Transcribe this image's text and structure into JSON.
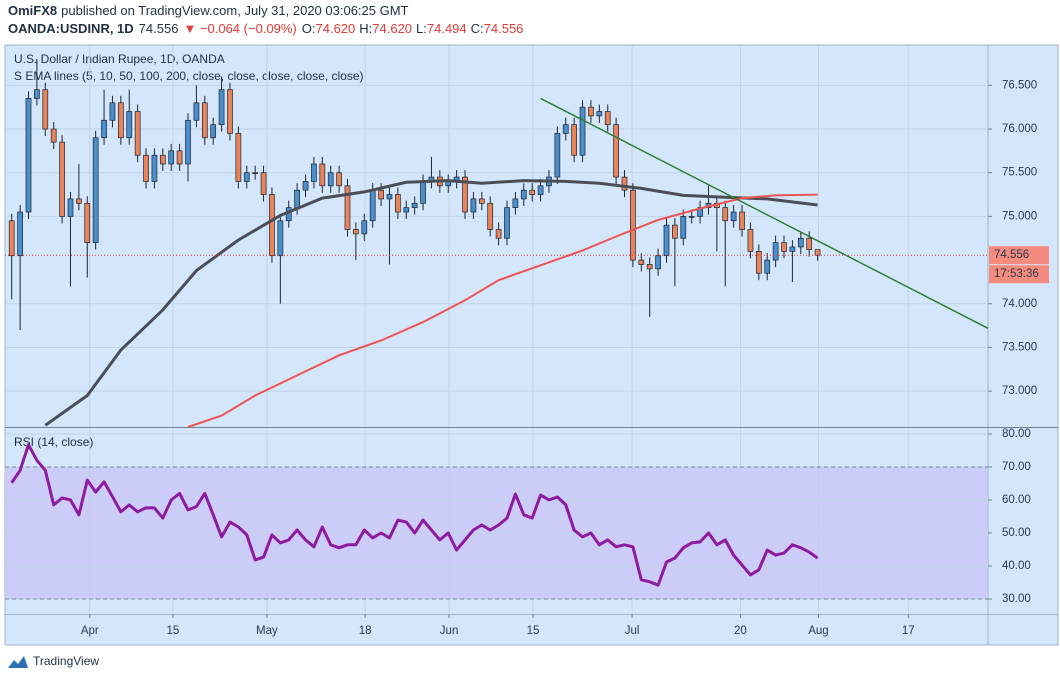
{
  "header": {
    "author": "OmiFX8",
    "published": "published on TradingView.com, July 31, 2020 03:06:25 GMT",
    "symbol": "OANDA:USDINR, 1D",
    "last": "74.556",
    "change": "▼ −0.064 (−0.09%)",
    "ohlc": [
      {
        "label": "O:",
        "value": "74.620"
      },
      {
        "label": "H:",
        "value": "74.620"
      },
      {
        "label": "L:",
        "value": "74.494"
      },
      {
        "label": "C:",
        "value": "74.556"
      }
    ]
  },
  "footer": {
    "brand": "TradingView"
  },
  "chart_data": [
    {
      "type": "candlestick",
      "title": "U.S. Dollar / Indian Rupee, 1D, OANDA",
      "subtitle": "S EMA lines (5, 10, 50, 100, 200, close, close, close, close, close)",
      "up_color": "#4a8fcb",
      "down_color": "#e8835a",
      "grid": true,
      "open": [
        74.95,
        74.55,
        75.05,
        76.35,
        76.45,
        76.0,
        75.85,
        75.0,
        75.2,
        75.15,
        74.7,
        75.9,
        76.1,
        76.3,
        75.9,
        76.2,
        75.7,
        75.4,
        75.7,
        75.6,
        75.75,
        75.6,
        76.1,
        76.3,
        75.9,
        76.05,
        76.45,
        75.95,
        75.4,
        75.5,
        75.5,
        75.25,
        74.55,
        74.95,
        75.1,
        75.3,
        75.4,
        75.6,
        75.35,
        75.5,
        75.35,
        74.85,
        74.8,
        74.95,
        75.3,
        75.2,
        75.25,
        75.05,
        75.1,
        75.15,
        75.4,
        75.45,
        75.35,
        75.4,
        75.45,
        75.05,
        75.2,
        75.15,
        74.85,
        74.75,
        75.1,
        75.2,
        75.3,
        75.25,
        75.35,
        75.45,
        75.95,
        76.05,
        75.7,
        76.25,
        76.15,
        76.2,
        76.05,
        75.45,
        75.3,
        74.5,
        74.45,
        74.4,
        74.55,
        74.9,
        74.75,
        75.0,
        75.0,
        75.1,
        75.15,
        75.1,
        74.95,
        75.05,
        74.85,
        74.6,
        74.35,
        74.5,
        74.7,
        74.6,
        74.65,
        74.75,
        74.62
      ],
      "high": [
        75.03,
        75.13,
        76.43,
        76.8,
        76.53,
        76.08,
        75.93,
        75.28,
        75.6,
        75.23,
        75.98,
        76.45,
        76.38,
        76.38,
        76.45,
        76.28,
        75.78,
        75.78,
        75.78,
        75.83,
        75.83,
        76.18,
        76.5,
        76.38,
        76.13,
        76.6,
        76.53,
        76.03,
        75.58,
        75.58,
        75.58,
        75.33,
        75.03,
        75.18,
        75.38,
        75.48,
        75.68,
        75.68,
        75.58,
        75.58,
        75.43,
        74.93,
        75.03,
        75.38,
        75.38,
        75.33,
        75.33,
        75.18,
        75.23,
        75.48,
        75.68,
        75.53,
        75.48,
        75.53,
        75.53,
        75.28,
        75.28,
        75.23,
        74.93,
        75.18,
        75.28,
        75.38,
        75.38,
        75.43,
        75.53,
        76.03,
        76.13,
        76.13,
        76.33,
        76.33,
        76.28,
        76.28,
        76.13,
        75.53,
        75.38,
        74.58,
        74.53,
        74.63,
        74.98,
        74.98,
        75.08,
        75.08,
        75.18,
        75.35,
        75.23,
        75.18,
        75.13,
        75.13,
        74.93,
        74.68,
        74.58,
        74.78,
        74.78,
        74.73,
        74.83,
        74.83,
        74.62
      ],
      "low": [
        74.05,
        73.7,
        74.97,
        76.27,
        75.92,
        75.77,
        74.92,
        74.2,
        75.07,
        74.3,
        74.62,
        75.82,
        76.02,
        75.82,
        75.82,
        75.62,
        75.32,
        75.32,
        75.52,
        75.52,
        75.52,
        75.4,
        76.02,
        75.82,
        75.82,
        75.97,
        75.87,
        75.32,
        75.32,
        75.42,
        75.17,
        74.47,
        74.0,
        74.87,
        75.02,
        75.22,
        75.32,
        75.27,
        75.27,
        75.27,
        74.77,
        74.5,
        74.72,
        74.87,
        75.12,
        74.45,
        74.97,
        74.97,
        75.02,
        75.07,
        75.32,
        75.27,
        75.27,
        75.32,
        74.97,
        74.97,
        75.07,
        74.77,
        74.67,
        74.67,
        75.02,
        75.12,
        75.17,
        75.17,
        75.27,
        75.37,
        75.87,
        75.62,
        75.62,
        76.07,
        76.07,
        75.97,
        75.37,
        75.22,
        74.42,
        74.37,
        73.85,
        74.32,
        74.47,
        74.2,
        74.67,
        74.92,
        74.92,
        75.02,
        74.6,
        74.2,
        74.87,
        74.77,
        74.52,
        74.27,
        74.27,
        74.42,
        74.52,
        74.25,
        74.57,
        74.54,
        74.494
      ],
      "close": [
        74.55,
        75.05,
        76.35,
        76.45,
        76.0,
        75.85,
        75.0,
        75.2,
        75.15,
        74.7,
        75.9,
        76.1,
        76.3,
        75.9,
        76.2,
        75.7,
        75.4,
        75.7,
        75.6,
        75.75,
        75.6,
        76.1,
        76.3,
        75.9,
        76.05,
        76.45,
        75.95,
        75.4,
        75.5,
        75.5,
        75.25,
        74.55,
        74.95,
        75.1,
        75.3,
        75.4,
        75.6,
        75.35,
        75.5,
        75.35,
        74.85,
        74.8,
        74.95,
        75.3,
        75.2,
        75.25,
        75.05,
        75.1,
        75.15,
        75.4,
        75.45,
        75.35,
        75.4,
        75.45,
        75.05,
        75.2,
        75.15,
        74.85,
        74.75,
        75.1,
        75.2,
        75.3,
        75.25,
        75.35,
        75.45,
        75.95,
        76.05,
        75.7,
        76.25,
        76.15,
        76.2,
        76.05,
        75.45,
        75.3,
        74.5,
        74.45,
        74.4,
        74.55,
        74.9,
        74.75,
        75.0,
        75.0,
        75.1,
        75.15,
        75.1,
        74.95,
        75.05,
        74.85,
        74.6,
        74.35,
        74.5,
        74.7,
        74.6,
        74.65,
        74.75,
        74.62,
        74.556
      ],
      "series": [
        {
          "color": "#4b4f55",
          "x": [
            4,
            9,
            13,
            18,
            22,
            27,
            32,
            37,
            42,
            47,
            52,
            56,
            61,
            66,
            70,
            75,
            80,
            85,
            90,
            96
          ],
          "values": [
            72.61,
            72.95,
            73.47,
            73.93,
            74.38,
            74.73,
            75.01,
            75.21,
            75.28,
            75.39,
            75.41,
            75.38,
            75.41,
            75.4,
            75.38,
            75.32,
            75.24,
            75.22,
            75.2,
            75.13
          ]
        },
        {
          "color": "#ef5350",
          "x": [
            21,
            25,
            29,
            34,
            39,
            44,
            49,
            54,
            58,
            63,
            68,
            72,
            77,
            82,
            87,
            91,
            96
          ],
          "values": [
            72.59,
            72.72,
            72.95,
            73.18,
            73.41,
            73.58,
            73.79,
            74.04,
            74.27,
            74.44,
            74.61,
            74.77,
            74.96,
            75.09,
            75.21,
            75.24,
            75.25
          ]
        }
      ],
      "trendline": {
        "color": "#2e7d32",
        "x": [
          63,
          116.3
        ],
        "values": [
          76.35,
          73.72
        ]
      },
      "last_value": {
        "value": 74.556,
        "label": "74.556"
      },
      "countdown": "17:53:36",
      "xlim": [
        -0.8,
        116.3
      ],
      "ylim": [
        72.59,
        76.95
      ],
      "yticks": [
        {
          "value": 73,
          "label": "73.000"
        },
        {
          "value": 73.5,
          "label": "73.500"
        },
        {
          "value": 74,
          "label": "74.000"
        },
        {
          "value": 75,
          "label": "75.000"
        },
        {
          "value": 75.5,
          "label": "75.500"
        },
        {
          "value": 76,
          "label": "76.000"
        },
        {
          "value": 76.5,
          "label": "76.500"
        }
      ],
      "xticks": [
        {
          "value": 9.3,
          "label": "Apr"
        },
        {
          "value": 19.2,
          "label": "15"
        },
        {
          "value": 30.4,
          "label": "May"
        },
        {
          "value": 42.1,
          "label": "18"
        },
        {
          "value": 52.1,
          "label": "Jun"
        },
        {
          "value": 62.1,
          "label": "15"
        },
        {
          "value": 73.9,
          "label": "Jul"
        },
        {
          "value": 86.8,
          "label": "20"
        },
        {
          "value": 96.1,
          "label": "Aug"
        },
        {
          "value": 106.8,
          "label": "17"
        }
      ]
    },
    {
      "type": "line",
      "title": "RSI (14, close)",
      "color": "#8e1a9f",
      "band": [
        30,
        70
      ],
      "band_color": "#c9c6f7",
      "values": [
        65.2,
        69.0,
        76.7,
        72.0,
        69.0,
        58.5,
        60.6,
        60.0,
        55.5,
        66.0,
        62.4,
        65.5,
        61.0,
        56.4,
        58.5,
        56.4,
        57.6,
        57.6,
        54.5,
        60.0,
        62.0,
        57.0,
        58.0,
        62.0,
        55.5,
        48.8,
        53.3,
        51.8,
        49.4,
        41.8,
        42.7,
        49.4,
        47.0,
        47.9,
        50.9,
        47.9,
        45.8,
        51.8,
        46.4,
        45.5,
        46.4,
        46.4,
        50.9,
        48.5,
        50.0,
        48.5,
        53.9,
        53.3,
        50.0,
        53.9,
        50.9,
        47.9,
        50.0,
        44.8,
        47.9,
        50.9,
        52.4,
        50.9,
        52.4,
        54.5,
        61.8,
        55.5,
        54.5,
        61.5,
        60.0,
        60.9,
        58.5,
        50.9,
        48.8,
        50.0,
        46.4,
        47.9,
        45.8,
        46.4,
        45.8,
        35.8,
        35.2,
        34.2,
        41.2,
        42.4,
        45.5,
        47.0,
        47.3,
        50.0,
        46.4,
        47.9,
        43.3,
        40.3,
        37.3,
        38.8,
        44.8,
        43.3,
        43.9,
        46.4,
        45.5,
        44.2,
        42.4
      ],
      "xlim": [
        -0.8,
        116.3
      ],
      "ylim": [
        25.45,
        81.8
      ],
      "yticks": [
        {
          "value": 30,
          "label": "30.00"
        },
        {
          "value": 40,
          "label": "40.00"
        },
        {
          "value": 50,
          "label": "50.00"
        },
        {
          "value": 60,
          "label": "60.00"
        },
        {
          "value": 70,
          "label": "70.00"
        },
        {
          "value": 80,
          "label": "80.00"
        }
      ]
    }
  ]
}
